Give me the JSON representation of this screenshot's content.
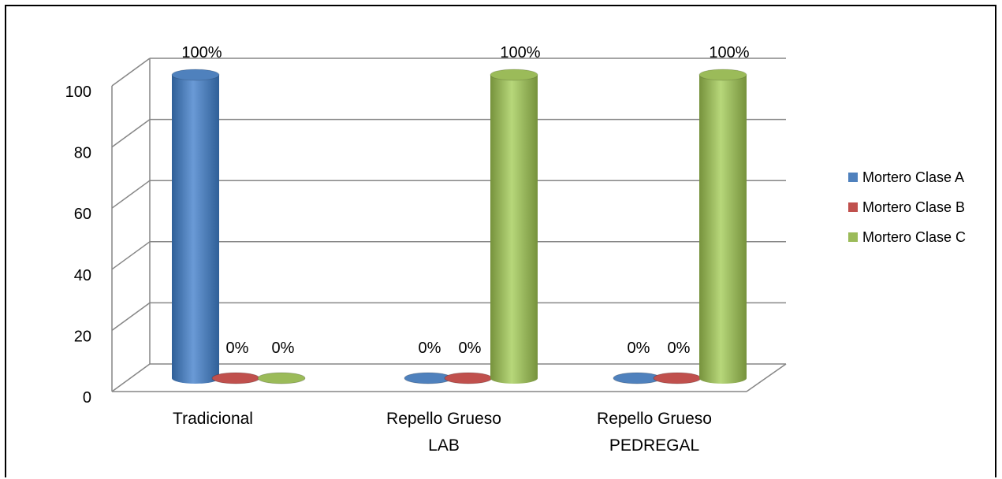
{
  "chart_data": {
    "type": "bar",
    "style": "3d-cylinder",
    "categories": [
      [
        "Tradicional"
      ],
      [
        "Repello Grueso",
        "LAB"
      ],
      [
        "Repello Grueso",
        "PEDREGAL"
      ]
    ],
    "series": [
      {
        "name": "Mortero Clase A",
        "color": "#4F81BD",
        "values": [
          100,
          0,
          0
        ],
        "labels": [
          "100%",
          "0%",
          "0%"
        ]
      },
      {
        "name": "Mortero Clase B",
        "color": "#C0504D",
        "values": [
          0,
          0,
          0
        ],
        "labels": [
          "0%",
          "0%",
          "0%"
        ]
      },
      {
        "name": "Mortero Clase C",
        "color": "#9BBB59",
        "values": [
          0,
          100,
          100
        ],
        "labels": [
          "0%",
          "100%",
          "100%"
        ]
      }
    ],
    "yticks": [
      "0",
      "20",
      "40",
      "60",
      "80",
      "100"
    ],
    "ylim": [
      0,
      100
    ],
    "grid": true,
    "legend_position": "right"
  }
}
